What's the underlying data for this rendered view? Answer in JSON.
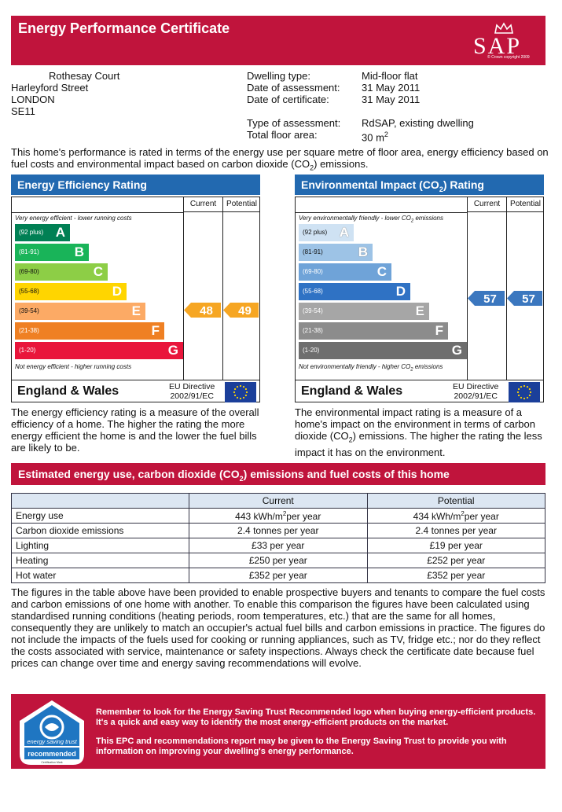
{
  "header": {
    "title": "Energy Performance Certificate",
    "logo_text": "SAP",
    "logo_copyright": "© Crown copyright 2009"
  },
  "address": {
    "lines": [
      "Rothesay Court",
      "Harleyford Street",
      "LONDON",
      "SE11"
    ]
  },
  "dwelling": {
    "type_label": "Dwelling type:",
    "type_value": "Mid-floor flat",
    "assessment_date_label": "Date of assessment:",
    "assessment_date_value": "31 May 2011",
    "certificate_date_label": "Date of certificate:",
    "certificate_date_value": "31 May 2011",
    "assessment_type_label": "Type of assessment:",
    "assessment_type_value": "RdSAP, existing dwelling",
    "floor_area_label": "Total floor area:",
    "floor_area_value": "30 m",
    "floor_area_sup": "2"
  },
  "intro": {
    "text_a": "This home's performance is rated in terms of the energy use per square metre of floor area, energy efficiency based on fuel costs and environmental impact based on carbon dioxide (CO",
    "sub": "2",
    "text_b": ") emissions."
  },
  "energy_rating": {
    "title": "Energy Efficiency Rating",
    "col_current": "Current",
    "col_potential": "Potential",
    "top_note": "Very energy efficient - lower running costs",
    "bottom_note": "Not energy efficient - higher running costs",
    "bands": [
      {
        "range": "(92 plus)",
        "letter": "A",
        "color": "#008054"
      },
      {
        "range": "(81-91)",
        "letter": "B",
        "color": "#19b459"
      },
      {
        "range": "(69-80)",
        "letter": "C",
        "color": "#8dce46"
      },
      {
        "range": "(55-68)",
        "letter": "D",
        "color": "#ffd500"
      },
      {
        "range": "(39-54)",
        "letter": "E",
        "color": "#fcaa65"
      },
      {
        "range": "(21-38)",
        "letter": "F",
        "color": "#ef8023"
      },
      {
        "range": "(1-20)",
        "letter": "G",
        "color": "#e9153b"
      }
    ],
    "current": "48",
    "potential": "49",
    "arrow_color": "#f6a623",
    "region": "England & Wales",
    "directive": "EU Directive",
    "directive_code": "2002/91/EC",
    "description": "The energy efficiency rating is a measure of the overall efficiency of a home. The higher the rating the more energy efficient the home is and the lower the fuel bills are likely to be."
  },
  "env_rating": {
    "title_a": "Environmental Impact (CO",
    "title_sub": "2",
    "title_b": ") Rating",
    "col_current": "Current",
    "col_potential": "Potential",
    "top_note_a": "Very environmentally friendly - lower CO",
    "top_note_sub": "2",
    "top_note_b": " emissions",
    "bottom_note_a": "Not environmentally friendly - higher CO",
    "bottom_note_sub": "2",
    "bottom_note_b": " emissions",
    "bands": [
      {
        "range": "(92 plus)",
        "letter": "A",
        "color": "#cfe2f3"
      },
      {
        "range": "(81-91)",
        "letter": "B",
        "color": "#9dc3e6"
      },
      {
        "range": "(69-80)",
        "letter": "C",
        "color": "#6fa3d8"
      },
      {
        "range": "(55-68)",
        "letter": "D",
        "color": "#2f72c4"
      },
      {
        "range": "(39-54)",
        "letter": "E",
        "color": "#a6a6a6"
      },
      {
        "range": "(21-38)",
        "letter": "F",
        "color": "#8c8c8c"
      },
      {
        "range": "(1-20)",
        "letter": "G",
        "color": "#6e6e6e"
      }
    ],
    "current": "57",
    "potential": "57",
    "arrow_color": "#3b77bf",
    "region": "England & Wales",
    "directive": "EU Directive",
    "directive_code": "2002/91/EC",
    "desc_a": "The environmental impact rating is a measure of a home's impact on the environment in terms of carbon dioxide (CO",
    "desc_sub": "2",
    "desc_b": ") emissions. The higher the rating the less impact it has on the environment."
  },
  "estimated": {
    "title_a": "Estimated energy use, carbon dioxide (CO",
    "title_sub": "2",
    "title_b": ") emissions and fuel costs of this home",
    "col_current": "Current",
    "col_potential": "Potential",
    "rows": [
      {
        "label": "Energy use",
        "current": "443 kWh/m",
        "current_sup": "2",
        "current_tail": "per year",
        "potential": "434 kWh/m",
        "potential_sup": "2",
        "potential_tail": "per year"
      },
      {
        "label": "Carbon dioxide emissions",
        "current": "2.4 tonnes per year",
        "potential": "2.4 tonnes per year"
      },
      {
        "label": "Lighting",
        "current": "£33 per year",
        "potential": "£19 per year"
      },
      {
        "label": "Heating",
        "current": "£250 per year",
        "potential": "£252 per year"
      },
      {
        "label": "Hot water",
        "current": "£352 per year",
        "potential": "£352 per year"
      }
    ],
    "note": "The figures in the table above have been provided to enable prospective buyers and tenants to compare the fuel costs and carbon emissions of one home with another. To enable this comparison the figures have been calculated using standardised running conditions (heating periods, room temperatures, etc.) that are the same for all homes, consequently they are unlikely to match an occupier's actual fuel bills and carbon emissions in practice. The figures do not include the impacts of the fuels used for cooking or running appliances, such as TV, fridge etc.; nor do they reflect the costs associated with service, maintenance or safety inspections. Always check the certificate date because fuel prices can change over time and energy saving recommendations will evolve."
  },
  "banner": {
    "logo_top": "energy saving trust",
    "logo_bottom": "recommended",
    "logo_small": "Certification Mark",
    "para1": "Remember to look for the Energy Saving Trust Recommended logo when buying energy-efficient products. It's a quick and easy way to identify the most energy-efficient products on the market.",
    "para2": "This EPC and recommendations report may be given to the Energy Saving Trust to provide you with information on improving your dwelling's energy performance."
  }
}
